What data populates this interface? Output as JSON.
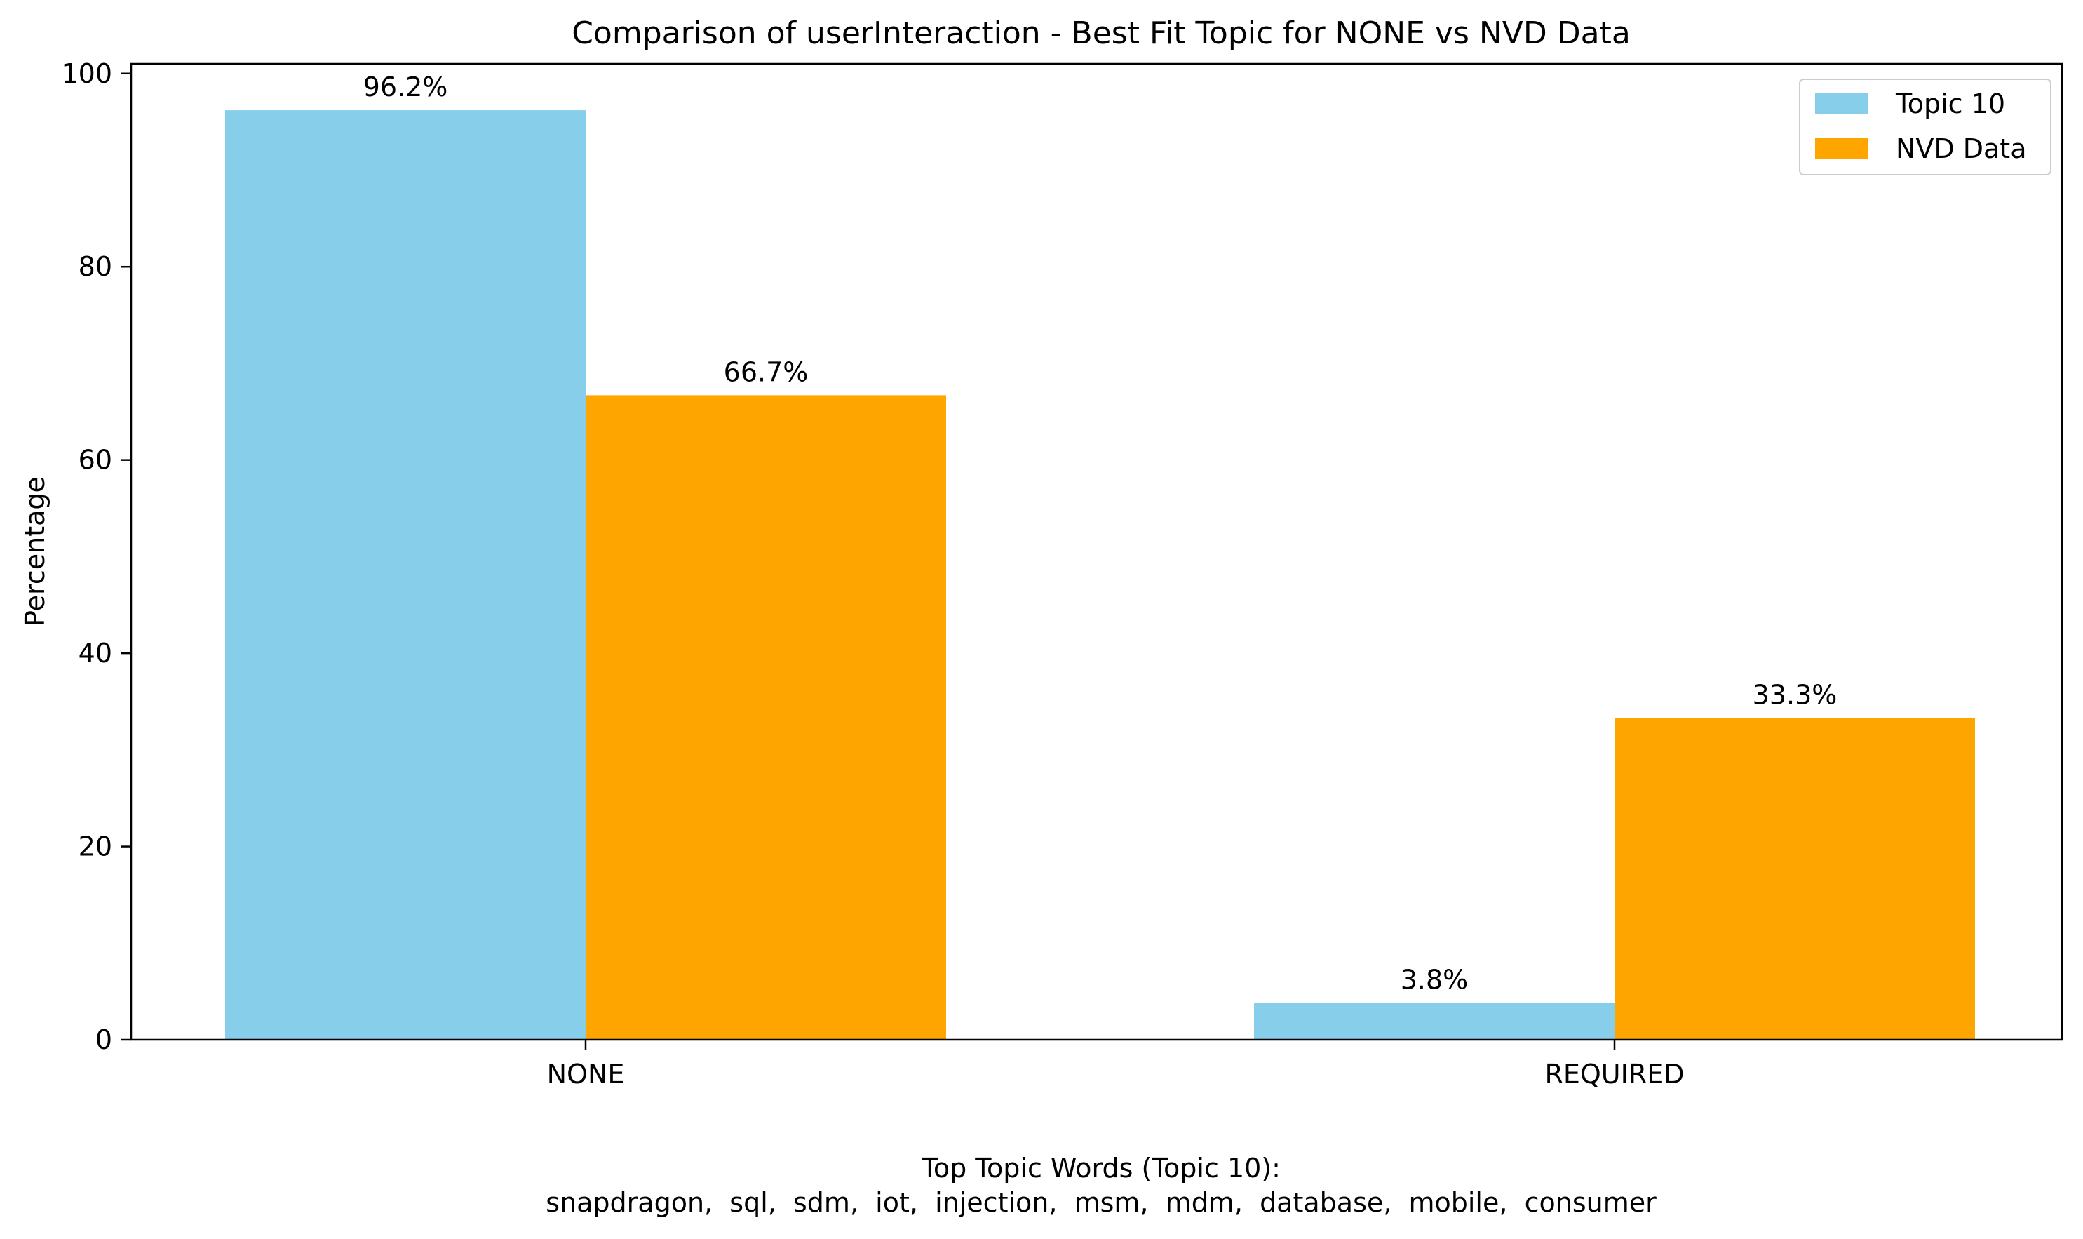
{
  "chart_data": {
    "type": "bar",
    "title": "Comparison of userInteraction - Best Fit Topic for NONE vs NVD Data",
    "xlabel": "",
    "ylabel": "Percentage",
    "categories": [
      "NONE",
      "REQUIRED"
    ],
    "series": [
      {
        "name": "Topic 10",
        "values": [
          96.2,
          3.8
        ],
        "labels": [
          "96.2%",
          "3.8%"
        ],
        "color": "#87CEEB"
      },
      {
        "name": "NVD Data",
        "values": [
          66.7,
          33.3
        ],
        "labels": [
          "66.7%",
          "33.3%"
        ],
        "color": "#FFA500"
      }
    ],
    "ylim": [
      0,
      101
    ],
    "yticks": [
      0,
      20,
      40,
      60,
      80,
      100
    ],
    "grid": false,
    "legend_position": "top-right",
    "footnote": {
      "line1": "Top Topic Words (Topic 10):",
      "line2": "snapdragon,  sql,  sdm,  iot,  injection,  msm,  mdm,  database,  mobile,  consumer"
    }
  }
}
